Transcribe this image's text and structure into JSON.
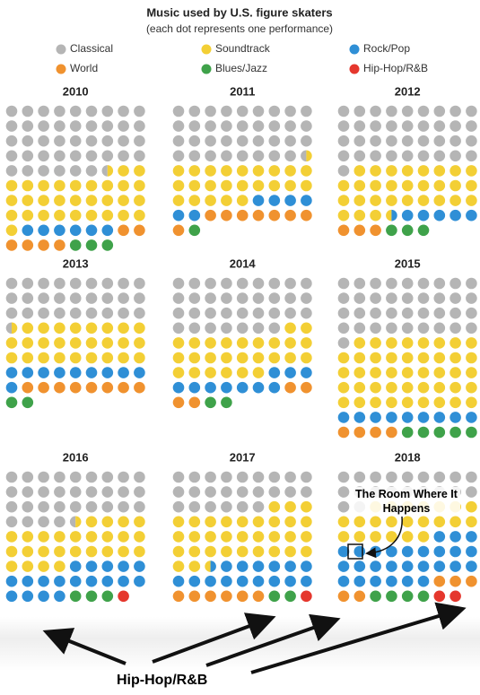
{
  "chart_data": {
    "type": "waffle",
    "title": "Music used by U.S. figure skaters",
    "subtitle": "(each dot represents one performance)",
    "categories": [
      "2010",
      "2011",
      "2012",
      "2013",
      "2014",
      "2015",
      "2016",
      "2017",
      "2018"
    ],
    "series": [
      {
        "name": "Classical",
        "color": "#b5b5b5",
        "values": [
          42.5,
          35.5,
          37,
          27.5,
          34,
          37,
          31.5,
          24,
          20
        ]
      },
      {
        "name": "Soundtrack",
        "color": "#f3cf35",
        "values": [
          30.5,
          23.5,
          29.5,
          26.5,
          26,
          44,
          26.5,
          32.5,
          22
        ]
      },
      {
        "name": "Rock/Pop",
        "color": "#2f8fd6",
        "values": [
          6,
          6,
          5.5,
          10,
          10,
          9,
          18,
          15.5,
          27
        ]
      },
      {
        "name": "World",
        "color": "#f0922f",
        "values": [
          6,
          8,
          3,
          8,
          4,
          4,
          0,
          6,
          5
        ]
      },
      {
        "name": "Blues/Jazz",
        "color": "#3fa24a",
        "values": [
          3,
          1,
          3,
          2,
          2,
          5,
          3,
          2,
          4
        ]
      },
      {
        "name": "Hip-Hop/R&B",
        "color": "#e5372d",
        "values": [
          0,
          0,
          0,
          0,
          0,
          0,
          1,
          1,
          2
        ]
      }
    ],
    "annotations": [
      {
        "text": "The Room Where It Happens"
      },
      {
        "text": "Hip-Hop/R&B"
      }
    ]
  }
}
